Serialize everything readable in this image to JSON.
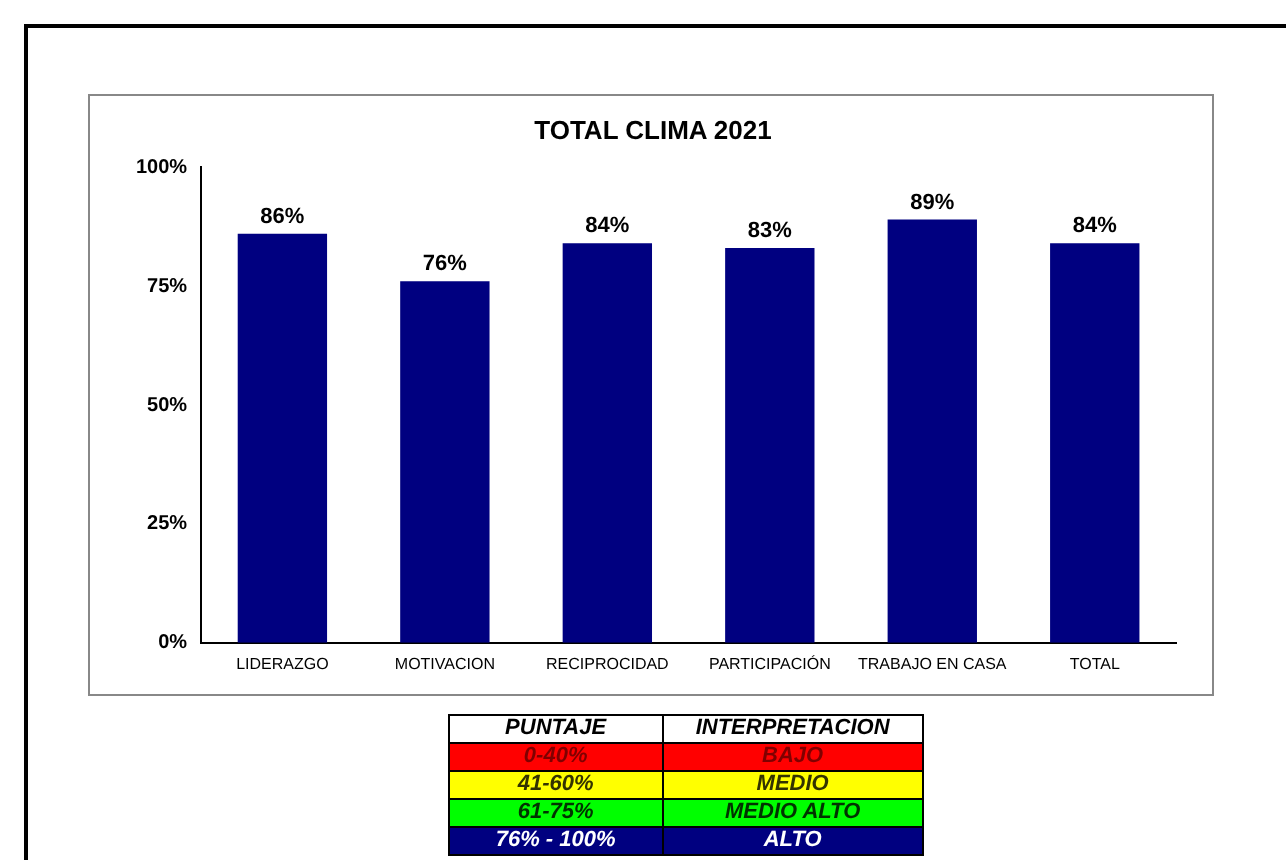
{
  "chart_data": {
    "type": "bar",
    "title": "TOTAL CLIMA 2021",
    "categories": [
      "LIDERAZGO",
      "MOTIVACION",
      "RECIPROCIDAD",
      "PARTICIPACIÓN",
      "TRABAJO EN CASA",
      "TOTAL"
    ],
    "values": [
      86,
      76,
      84,
      83,
      89,
      84
    ],
    "value_labels": [
      "86%",
      "76%",
      "84%",
      "83%",
      "89%",
      "84%"
    ],
    "color": "#000080",
    "ylim": [
      0,
      100
    ],
    "yticks": [
      {
        "value": 0,
        "label": "0%"
      },
      {
        "value": 25,
        "label": "25%"
      },
      {
        "value": 50,
        "label": "50%"
      },
      {
        "value": 75,
        "label": "75%"
      },
      {
        "value": 100,
        "label": "100%"
      }
    ],
    "grid": false,
    "legend": false,
    "annotations": [
      "PUNTAJE",
      "INTERPRETACION",
      "0-40%",
      "BAJO",
      "41-60%",
      "MEDIO",
      "61-75%",
      "MEDIO ALTO",
      "76% - 100%",
      "ALTO"
    ]
  }
}
